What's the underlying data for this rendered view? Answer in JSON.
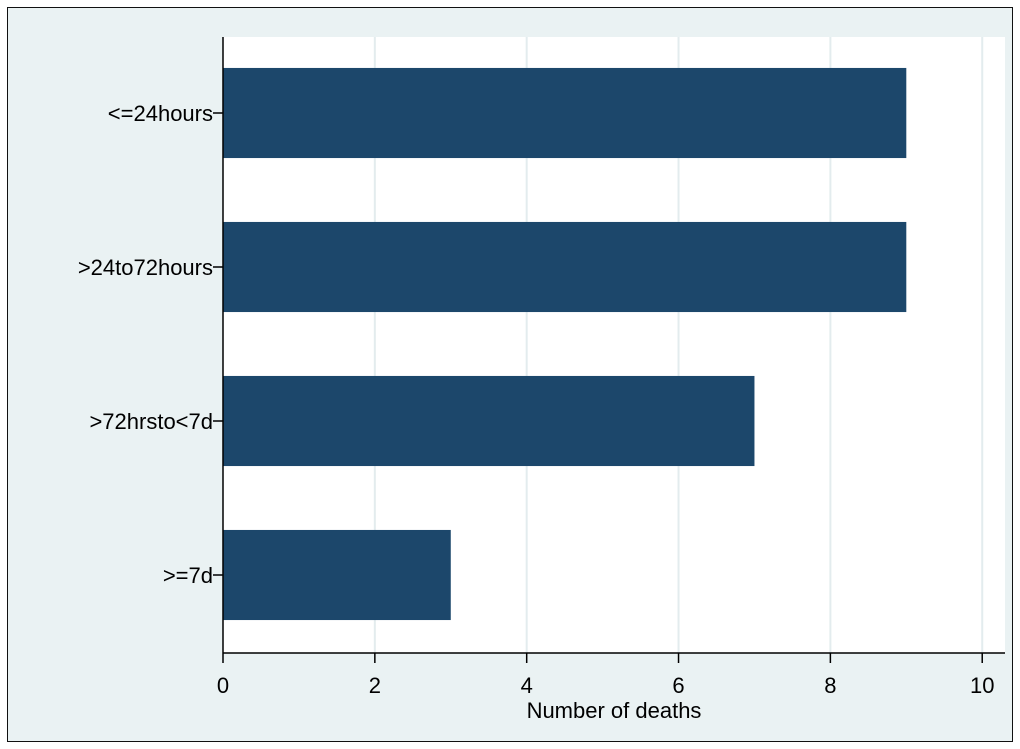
{
  "chart_data": {
    "type": "bar",
    "orientation": "horizontal",
    "categories": [
      "<=24hours",
      ">24to72hours",
      ">72hrsto<7d",
      ">=7d"
    ],
    "values": [
      9,
      9,
      7,
      3
    ],
    "title": "",
    "xlabel": "Number of deaths",
    "ylabel": "",
    "xlim": [
      0,
      10
    ],
    "xticks": [
      "0",
      "2",
      "4",
      "6",
      "8",
      "10"
    ],
    "grid": "vertical",
    "legend": "none",
    "colors": {
      "bar": "#1c476b",
      "plot_background": "#ffffff",
      "outer_background": "#eaf2f3",
      "grid": "#e3ecee"
    }
  }
}
